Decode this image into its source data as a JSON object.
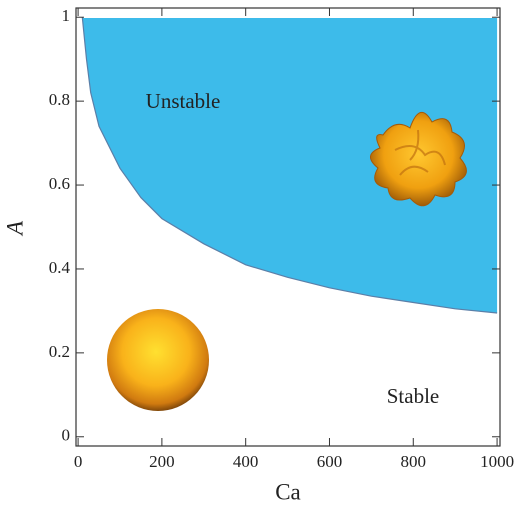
{
  "chart_data": {
    "type": "area",
    "xlabel": "Ca",
    "ylabel": "A",
    "x": [
      10,
      20,
      30,
      50,
      100,
      150,
      200,
      300,
      400,
      500,
      600,
      700,
      800,
      900,
      1000
    ],
    "series": [
      {
        "color": "#3dbbea",
        "values": [
          1.0,
          0.9,
          0.82,
          0.74,
          0.64,
          0.57,
          0.52,
          0.46,
          0.41,
          0.38,
          0.355,
          0.335,
          0.32,
          0.305,
          0.295
        ]
      }
    ],
    "annotations": [
      "Unstable",
      "Stable"
    ],
    "xlim": [
      -5,
      1007
    ],
    "ylim": [
      -0.022,
      1.022
    ],
    "xticks": [
      0,
      200,
      400,
      600,
      800,
      1000
    ],
    "yticks": [
      0,
      0.2,
      0.4,
      0.6,
      0.8,
      1
    ]
  }
}
